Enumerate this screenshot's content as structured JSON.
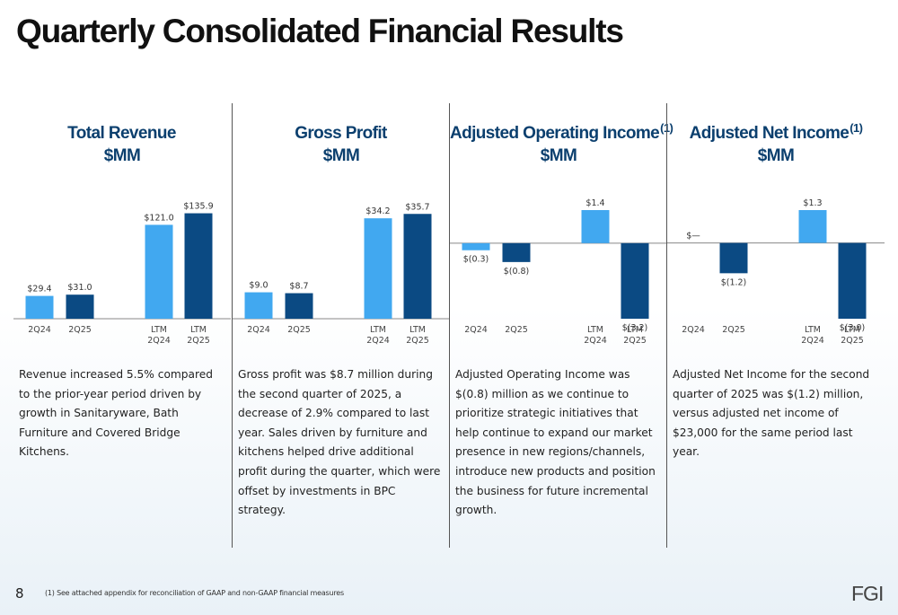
{
  "page": {
    "title": "Quarterly Consolidated Financial Results",
    "page_number": "8",
    "footnote": "(1) See attached appendix for reconciliation of GAAP and non-GAAP financial measures",
    "logo_text": "FGI"
  },
  "colors": {
    "light_bar": "#41a8f0",
    "dark_bar": "#0b4a83",
    "title": "#0b3f6e"
  },
  "panels": [
    {
      "title": "Total Revenue",
      "title_sup": "",
      "unit": "$MM",
      "description": "Revenue increased 5.5% compared to the prior-year period driven by growth in Sanitaryware, Bath Furniture and Covered Bridge Kitchens."
    },
    {
      "title": "Gross Profit",
      "title_sup": "",
      "unit": "$MM",
      "description": "Gross profit was $8.7 million during the second quarter of 2025, a decrease of 2.9% compared to last year. Sales driven by furniture and kitchens helped drive additional profit during the quarter, which were offset by investments in BPC strategy."
    },
    {
      "title": "Adjusted Operating Income",
      "title_sup": "(1)",
      "unit": "$MM",
      "description": "Adjusted Operating Income was $(0.8) million as we continue to prioritize strategic initiatives that help continue to expand our market presence in new regions/channels, introduce new products and position the business for future incremental growth."
    },
    {
      "title": "Adjusted Net Income",
      "title_sup": "(1)",
      "unit": "$MM",
      "description": "Adjusted Net Income for the second quarter of 2025 was $(1.2) million, versus adjusted net income of $23,000 for the same period last year."
    }
  ],
  "chart_data": [
    {
      "type": "bar",
      "categories": [
        "2Q24",
        "2Q25",
        "LTM 2Q24",
        "LTM 2Q25"
      ],
      "values": [
        29.4,
        31.0,
        121.0,
        135.9
      ],
      "labels": [
        "$29.4",
        "$31.0",
        "$121.0",
        "$135.9"
      ],
      "bar_colors": [
        "light",
        "dark",
        "light",
        "dark"
      ],
      "ylim": [
        0,
        140
      ]
    },
    {
      "type": "bar",
      "categories": [
        "2Q24",
        "2Q25",
        "LTM 2Q24",
        "LTM 2Q25"
      ],
      "values": [
        9.0,
        8.7,
        34.2,
        35.7
      ],
      "labels": [
        "$9.0",
        "$8.7",
        "$34.2",
        "$35.7"
      ],
      "bar_colors": [
        "light",
        "dark",
        "light",
        "dark"
      ],
      "ylim": [
        0,
        37
      ]
    },
    {
      "type": "bar",
      "categories": [
        "2Q24",
        "2Q25",
        "LTM 2Q24",
        "LTM 2Q25"
      ],
      "values": [
        -0.3,
        -0.8,
        1.4,
        -3.2
      ],
      "labels": [
        "$(0.3)",
        "$(0.8)",
        "$1.4",
        "$(3.2)"
      ],
      "bar_colors": [
        "light",
        "dark",
        "light",
        "dark"
      ],
      "ylim": [
        -3.2,
        1.4
      ]
    },
    {
      "type": "bar",
      "categories": [
        "2Q24",
        "2Q25",
        "LTM 2Q24",
        "LTM 2Q25"
      ],
      "values": [
        0.0,
        -1.2,
        1.3,
        -3.0
      ],
      "labels": [
        "$—",
        "$(1.2)",
        "$1.3",
        "$(3.0)"
      ],
      "bar_colors": [
        "light",
        "dark",
        "light",
        "dark"
      ],
      "ylim": [
        -3.0,
        1.3
      ]
    }
  ]
}
